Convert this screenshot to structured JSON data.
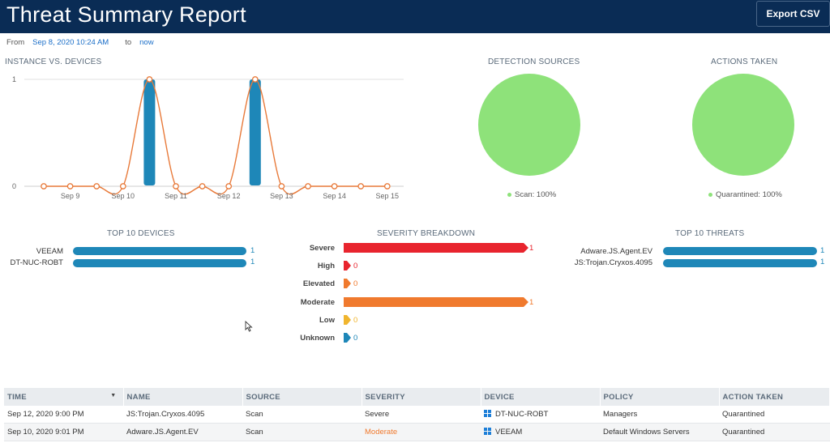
{
  "header": {
    "title": "Threat Summary Report",
    "export_label": "Export CSV"
  },
  "date_range": {
    "from_label": "From",
    "from_value": "Sep 8, 2020 10:24 AM",
    "to_label": "to",
    "to_value": "now"
  },
  "instance_chart": {
    "title": "INSTANCE VS. DEVICES",
    "y_ticks": [
      "1",
      "0"
    ],
    "x_ticks": [
      "Sep 9",
      "Sep 10",
      "Sep 11",
      "Sep 12",
      "Sep 13",
      "Sep 14",
      "Sep 15"
    ]
  },
  "detection_sources": {
    "title": "DETECTION SOURCES",
    "legend": "Scan: 100%",
    "color": "#8ee27a"
  },
  "actions_taken": {
    "title": "ACTIONS TAKEN",
    "legend": "Quarantined: 100%",
    "color": "#8ee27a"
  },
  "top_devices": {
    "title": "TOP 10 DEVICES",
    "items": [
      {
        "label": "VEEAM",
        "value": "1"
      },
      {
        "label": "DT-NUC-ROBT",
        "value": "1"
      }
    ]
  },
  "severity": {
    "title": "SEVERITY BREAKDOWN",
    "items": [
      {
        "label": "Severe",
        "value": "1",
        "color": "#e8242e"
      },
      {
        "label": "High",
        "value": "0",
        "color": "#e8242e"
      },
      {
        "label": "Elevated",
        "value": "0",
        "color": "#f07a2e"
      },
      {
        "label": "Moderate",
        "value": "1",
        "color": "#f07a2e"
      },
      {
        "label": "Low",
        "value": "0",
        "color": "#f0b52e"
      },
      {
        "label": "Unknown",
        "value": "0",
        "color": "#1e87b8"
      }
    ]
  },
  "top_threats": {
    "title": "TOP 10 THREATS",
    "items": [
      {
        "label": "Adware.JS.Agent.EV",
        "value": "1"
      },
      {
        "label": "JS:Trojan.Cryxos.4095",
        "value": "1"
      }
    ]
  },
  "table": {
    "columns": [
      "TIME",
      "NAME",
      "SOURCE",
      "SEVERITY",
      "DEVICE",
      "POLICY",
      "ACTION TAKEN"
    ],
    "rows": [
      {
        "time": "Sep 12, 2020 9:00 PM",
        "name": "JS:Trojan.Cryxos.4095",
        "source": "Scan",
        "severity": "Severe",
        "device": "DT-NUC-ROBT",
        "policy": "Managers",
        "action": "Quarantined"
      },
      {
        "time": "Sep 10, 2020 9:01 PM",
        "name": "Adware.JS.Agent.EV",
        "source": "Scan",
        "severity": "Moderate",
        "device": "VEEAM",
        "policy": "Default Windows Servers",
        "action": "Quarantined"
      }
    ]
  },
  "chart_data": {
    "type": "line",
    "title": "INSTANCE VS. DEVICES",
    "x": [
      "Sep 8",
      "Sep 9",
      "Sep 9",
      "Sep 10",
      "Sep 10",
      "Sep 11",
      "Sep 11",
      "Sep 12",
      "Sep 12",
      "Sep 13",
      "Sep 13",
      "Sep 14",
      "Sep 14",
      "Sep 15"
    ],
    "series": [
      {
        "values": [
          0,
          0,
          0,
          0,
          1,
          0,
          0,
          0,
          1,
          0,
          0,
          0,
          0,
          0
        ]
      }
    ],
    "bars": [
      {
        "x": "Sep 10",
        "value": 1
      },
      {
        "x": "Sep 12",
        "value": 1
      }
    ],
    "ylim": [
      0,
      1
    ],
    "grid": true
  }
}
